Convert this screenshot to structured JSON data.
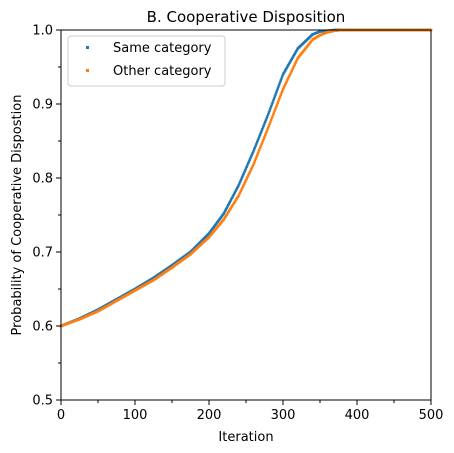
{
  "chart_data": {
    "type": "scatter",
    "title": "B. Cooperative Disposition",
    "xlabel": "Iteration",
    "ylabel": "Probability of Cooperative Dispostion",
    "xlim": [
      0,
      500
    ],
    "ylim": [
      0.5,
      1.0
    ],
    "x_ticks": [
      "0",
      "100",
      "200",
      "300",
      "400",
      "500"
    ],
    "y_ticks": [
      "0.5",
      "0.6",
      "0.7",
      "0.8",
      "0.9",
      "1.0"
    ],
    "grid": false,
    "legend_position": "top-left",
    "series": [
      {
        "name": "Same category",
        "color": "#1f77b4",
        "x": [
          0,
          25,
          50,
          75,
          100,
          125,
          150,
          175,
          200,
          220,
          240,
          260,
          280,
          300,
          320,
          340,
          350,
          360,
          370,
          380,
          400,
          450,
          500
        ],
        "y": [
          0.6,
          0.61,
          0.622,
          0.636,
          0.65,
          0.665,
          0.682,
          0.7,
          0.725,
          0.752,
          0.79,
          0.836,
          0.886,
          0.94,
          0.975,
          0.994,
          0.998,
          0.999,
          1.0,
          1.0,
          1.0,
          1.0,
          1.0
        ]
      },
      {
        "name": "Other category",
        "color": "#ff7f0e",
        "x": [
          0,
          25,
          50,
          75,
          100,
          125,
          150,
          175,
          200,
          220,
          240,
          260,
          280,
          300,
          320,
          340,
          350,
          360,
          370,
          380,
          400,
          450,
          500
        ],
        "y": [
          0.6,
          0.609,
          0.62,
          0.634,
          0.648,
          0.662,
          0.679,
          0.697,
          0.72,
          0.744,
          0.776,
          0.818,
          0.868,
          0.92,
          0.962,
          0.987,
          0.993,
          0.997,
          0.999,
          1.0,
          1.0,
          1.0,
          1.0
        ]
      }
    ]
  }
}
